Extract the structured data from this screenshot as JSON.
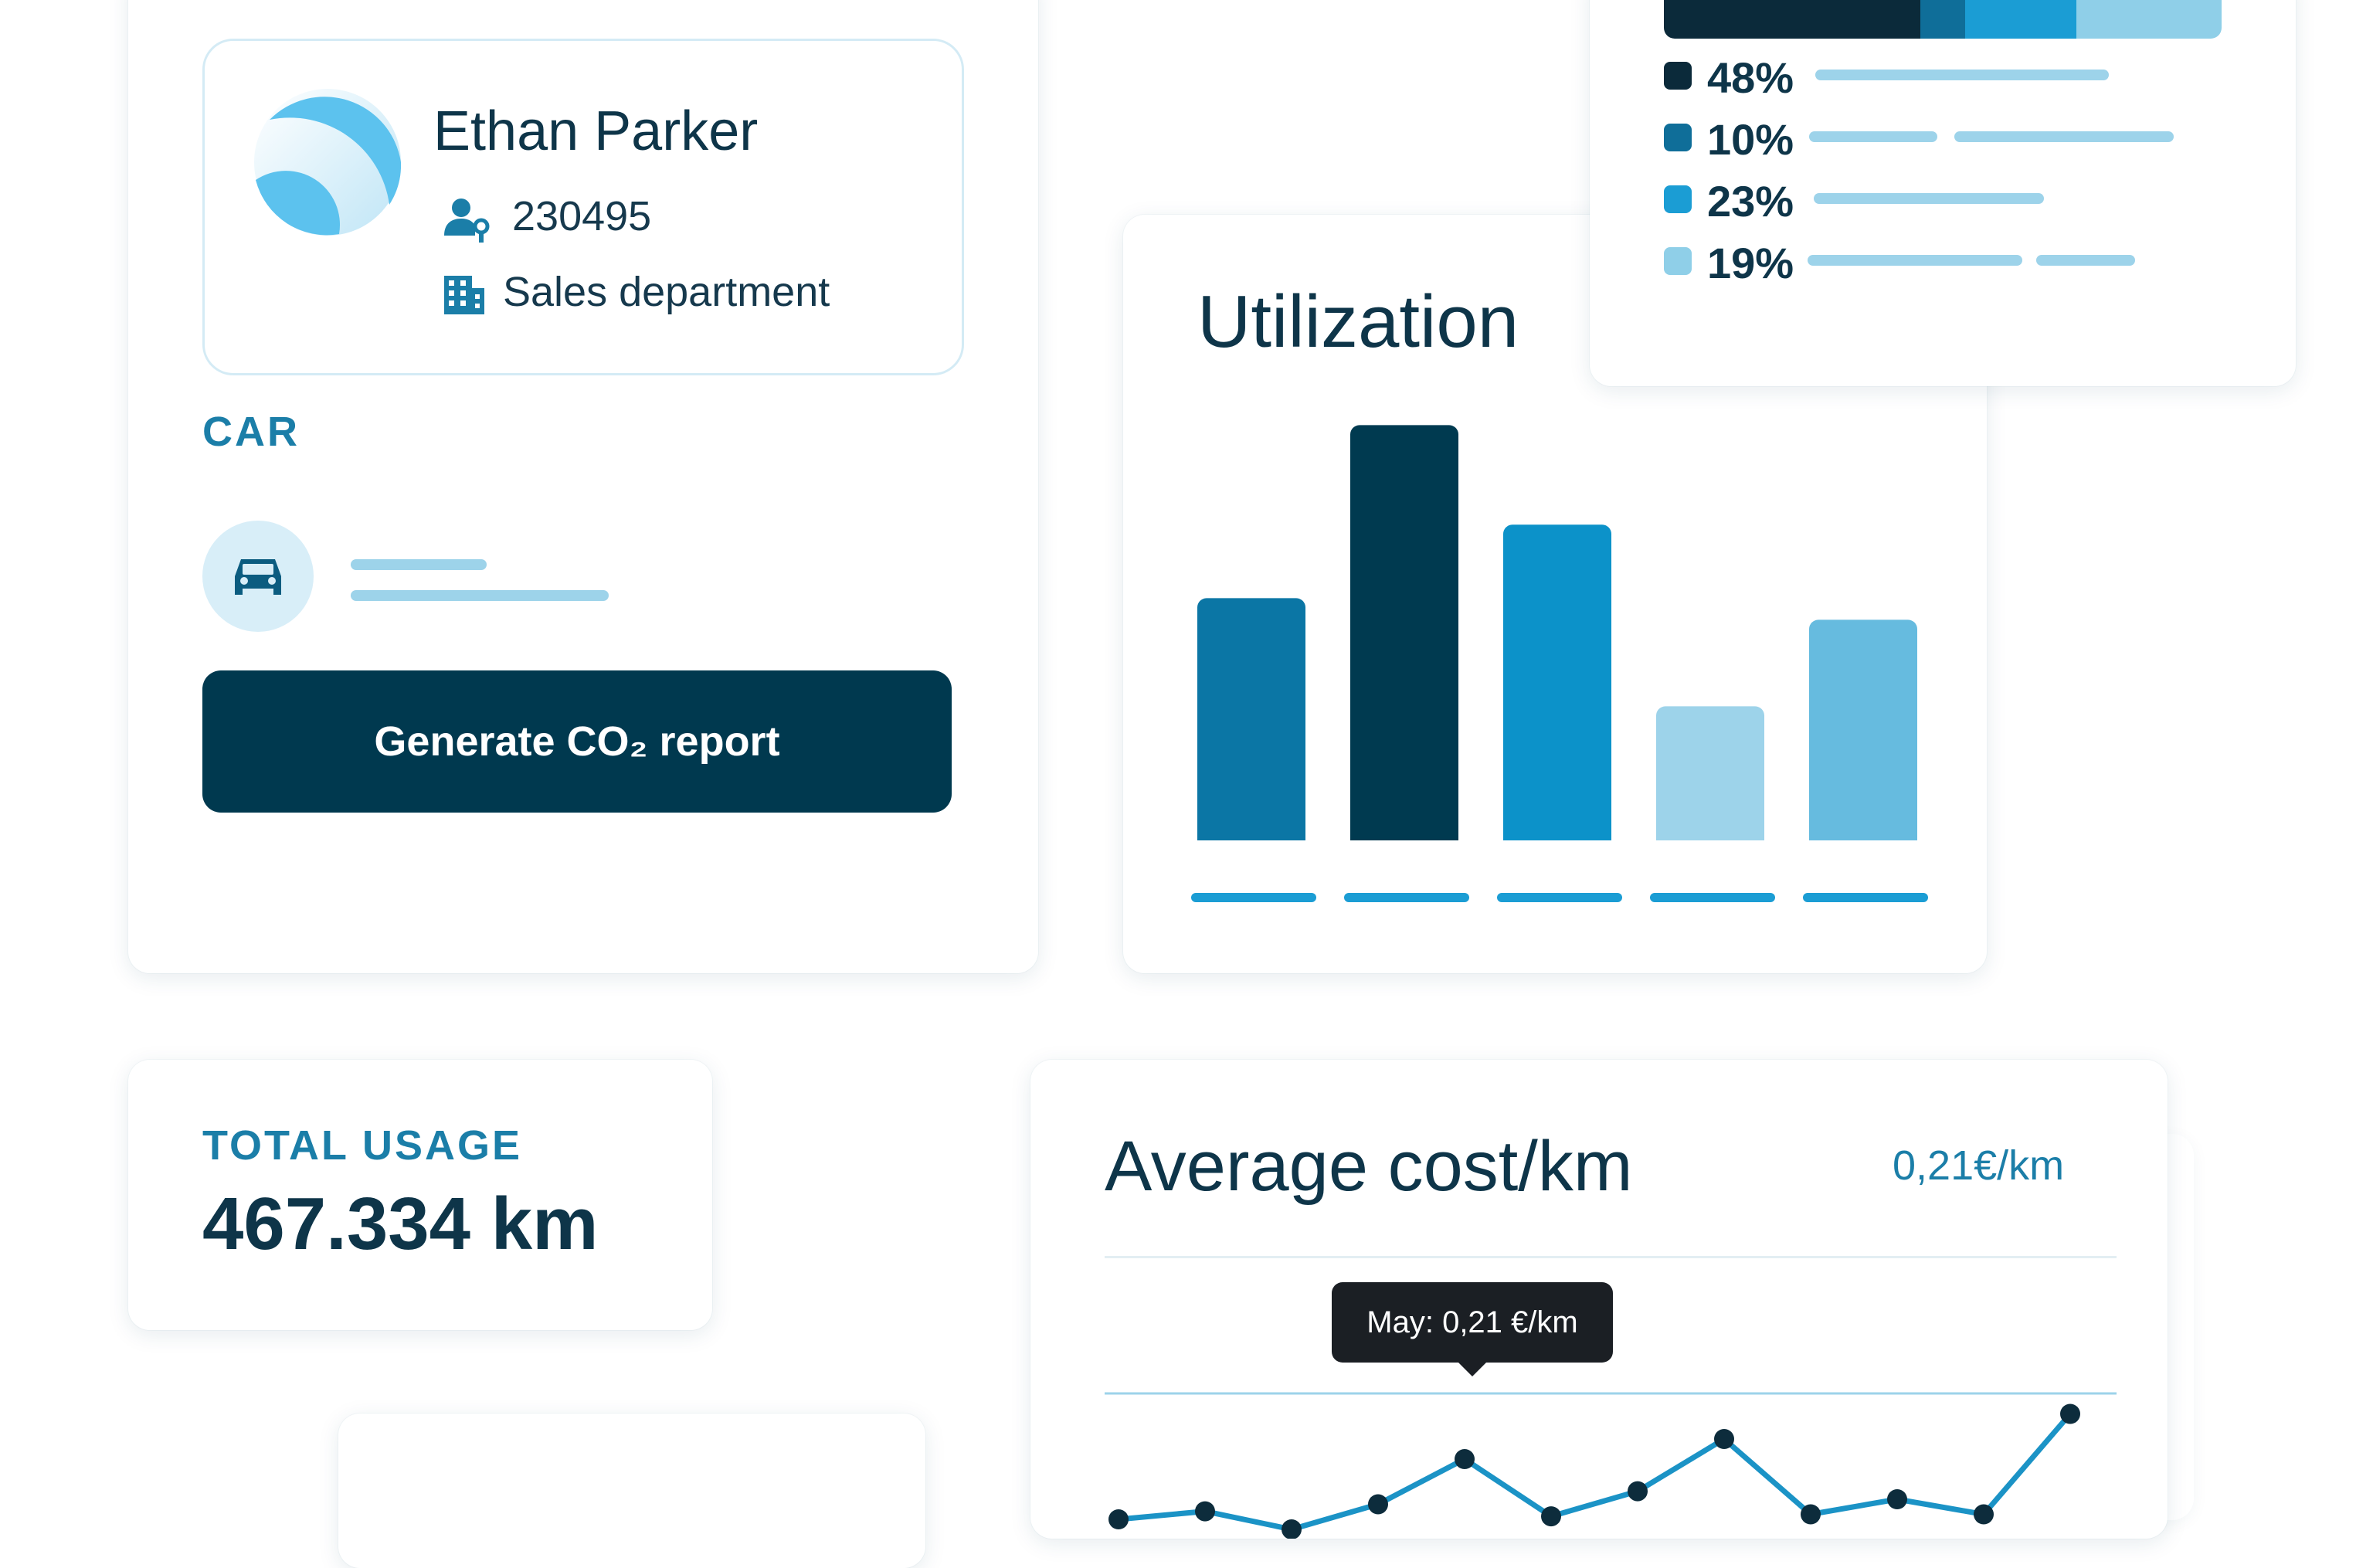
{
  "profile": {
    "name": "Ethan Parker",
    "employee_id": "230495",
    "department": "Sales department",
    "car_label": "CAR",
    "report_button": "Generate CO₂ report"
  },
  "utilization": {
    "title": "Utilization"
  },
  "legend": {
    "items": [
      {
        "pct": "48%",
        "color": "#0b2a3a"
      },
      {
        "pct": "10%",
        "color": "#0f6e99"
      },
      {
        "pct": "23%",
        "color": "#1b9dd4"
      },
      {
        "pct": "19%",
        "color": "#8fcfe8"
      }
    ]
  },
  "usage": {
    "label": "TOTAL USAGE",
    "value": "467.334 km"
  },
  "cost": {
    "title": "Average cost/km",
    "value": "0,21€/km",
    "tooltip": "May: 0,21 €/km"
  },
  "colors": {
    "primary_dark": "#00394f",
    "accent": "#1b9dd4",
    "light": "#9dd3ea"
  },
  "chart_data": [
    {
      "type": "bar",
      "title": "Utilization",
      "categories": [
        "",
        "",
        "",
        "",
        ""
      ],
      "values": [
        56,
        96,
        73,
        31,
        51
      ],
      "colors": [
        "#0b76a5",
        "#003a50",
        "#0c92c9",
        "#9dd3ea",
        "#66bbdf"
      ],
      "ylim": [
        0,
        100
      ]
    },
    {
      "type": "line",
      "title": "Average cost/km",
      "x": [
        1,
        2,
        3,
        4,
        5,
        6,
        7,
        8,
        9,
        10,
        11,
        12
      ],
      "values": [
        0.15,
        0.158,
        0.14,
        0.165,
        0.21,
        0.153,
        0.178,
        0.23,
        0.155,
        0.17,
        0.155,
        0.255
      ],
      "highlight": "May: 0,21 €/km",
      "ylim": [
        0.1,
        0.3
      ]
    }
  ]
}
